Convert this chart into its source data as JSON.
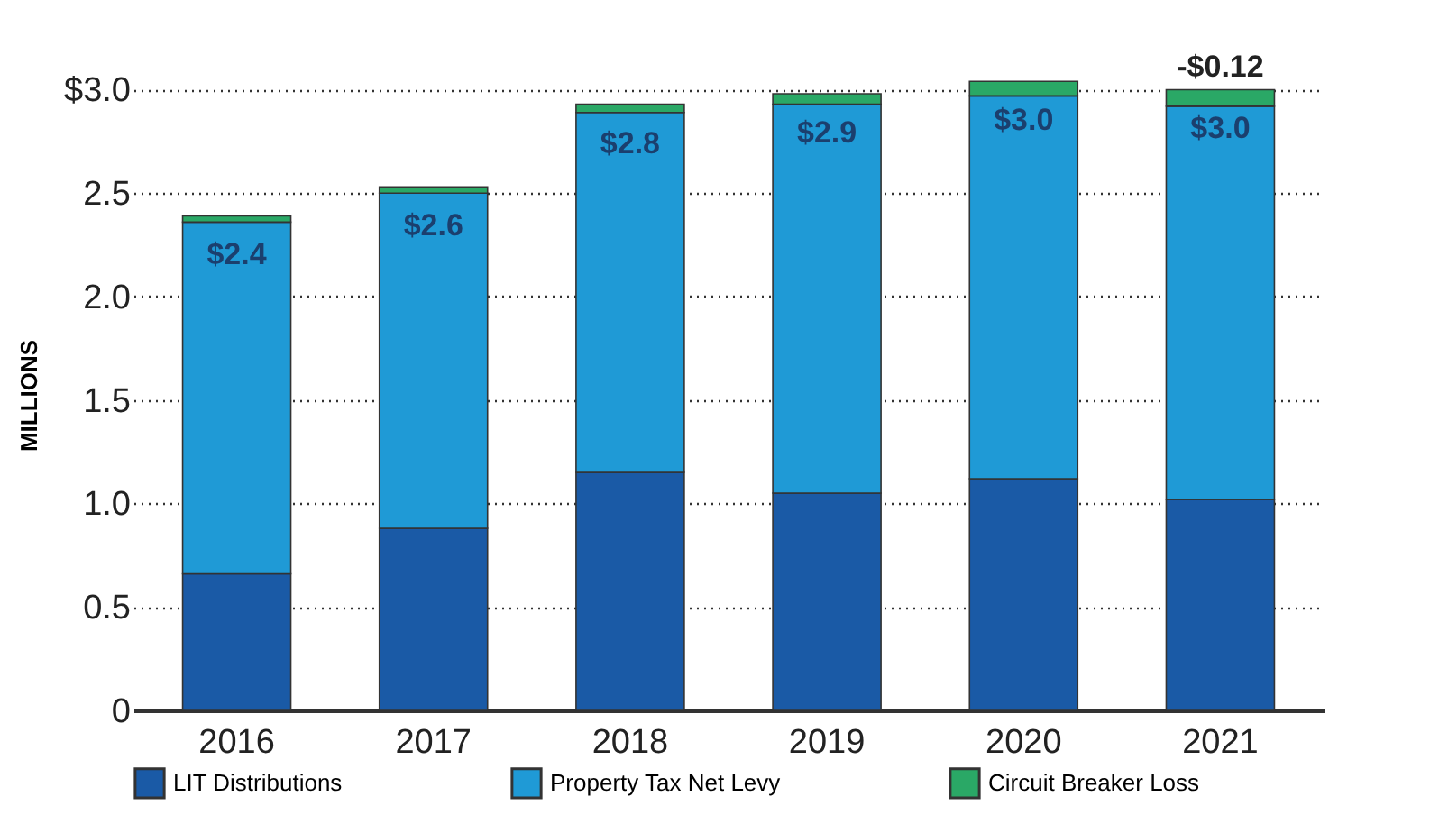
{
  "chart_data": {
    "type": "bar",
    "stacked": true,
    "ylabel": "MILLIONS",
    "categories": [
      "2016",
      "2017",
      "2018",
      "2019",
      "2020",
      "2021"
    ],
    "series": [
      {
        "name": "LIT Distributions",
        "color": "#1a5aa6",
        "values": [
          0.66,
          0.88,
          1.15,
          1.05,
          1.12,
          1.02
        ]
      },
      {
        "name": "Property Tax Net Levy",
        "color": "#1f9ad6",
        "values": [
          1.7,
          1.62,
          1.74,
          1.88,
          1.85,
          1.9
        ]
      },
      {
        "name": "Circuit Breaker Loss",
        "color": "#2aa866",
        "values": [
          0.03,
          0.03,
          0.04,
          0.05,
          0.07,
          0.08
        ]
      }
    ],
    "totals": [
      "$2.4",
      "$2.6",
      "$2.8",
      "$2.9",
      "$3.0",
      "$3.0"
    ],
    "annotations": [
      {
        "text": "-$0.12",
        "x": "2021",
        "y": 3.0
      }
    ],
    "ylim": [
      0,
      3.05
    ],
    "yticks": [
      0,
      0.5,
      {
        "value": 1,
        "label": "1.0"
      },
      1.5,
      {
        "value": 2,
        "label": "2.0"
      },
      2.5,
      {
        "value": 3,
        "label": "$3.0"
      }
    ],
    "grid": "y",
    "legend": "bottom"
  }
}
